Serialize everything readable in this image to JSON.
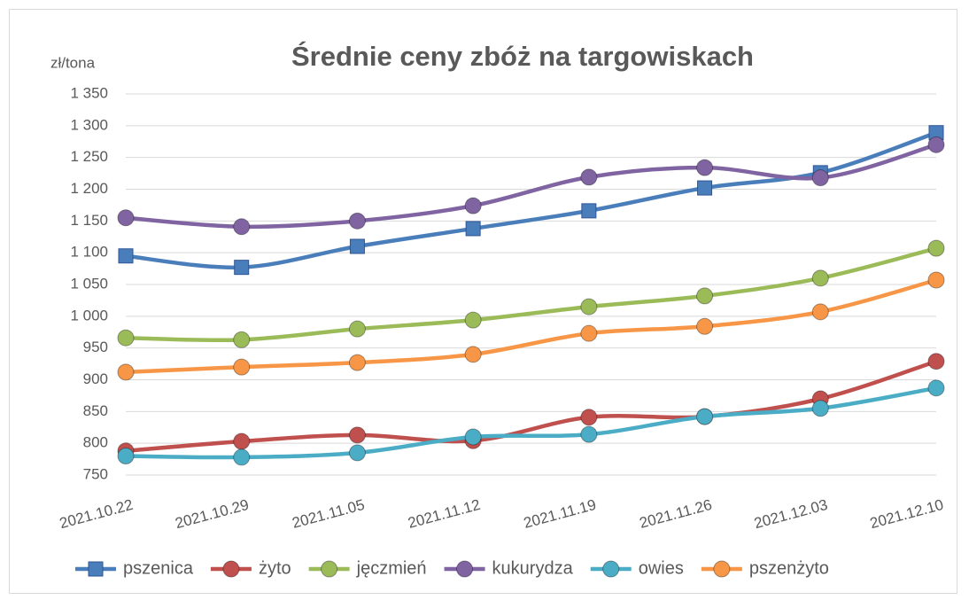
{
  "chart_data": {
    "type": "line",
    "title": "Średnie ceny zbóż na targowiskach",
    "ylabel": "zł/tona",
    "x": [
      "2021.10.22",
      "2021.10.29",
      "2021.11.05",
      "2021.11.12",
      "2021.11.19",
      "2021.11.26",
      "2021.12.03",
      "2021.12.10"
    ],
    "series": [
      {
        "name": "pszenica",
        "color": "#4a7ebb",
        "marker": "square",
        "values": [
          1095,
          1077,
          1110,
          1138,
          1166,
          1202,
          1226,
          1289
        ]
      },
      {
        "name": "żyto",
        "color": "#c0504d",
        "marker": "circle",
        "values": [
          788,
          803,
          813,
          804,
          841,
          842,
          870,
          929
        ]
      },
      {
        "name": "jęczmień",
        "color": "#9bbb59",
        "marker": "circle",
        "values": [
          966,
          963,
          980,
          994,
          1015,
          1032,
          1060,
          1107
        ]
      },
      {
        "name": "kukurydza",
        "color": "#8064a2",
        "marker": "circle",
        "values": [
          1155,
          1141,
          1150,
          1174,
          1219,
          1234,
          1218,
          1270
        ]
      },
      {
        "name": "owies",
        "color": "#4bacc6",
        "marker": "circle",
        "values": [
          780,
          778,
          785,
          810,
          814,
          842,
          855,
          887
        ]
      },
      {
        "name": "pszenżyto",
        "color": "#f79646",
        "marker": "circle",
        "values": [
          912,
          920,
          927,
          940,
          973,
          984,
          1007,
          1057
        ]
      }
    ],
    "ylim": [
      750,
      1350
    ],
    "yticks": [
      750,
      800,
      850,
      900,
      950,
      {
        "value": 1000,
        "label": "1 000"
      },
      {
        "value": 1050,
        "label": "1 050"
      },
      {
        "value": 1100,
        "label": "1 100"
      },
      {
        "value": 1150,
        "label": "1 150"
      },
      {
        "value": 1200,
        "label": "1 200"
      },
      {
        "value": 1250,
        "label": "1 250"
      },
      {
        "value": 1300,
        "label": "1 300"
      },
      {
        "value": 1350,
        "label": "1 350"
      }
    ],
    "grid": true,
    "smooth": true,
    "legend": "bottom"
  }
}
